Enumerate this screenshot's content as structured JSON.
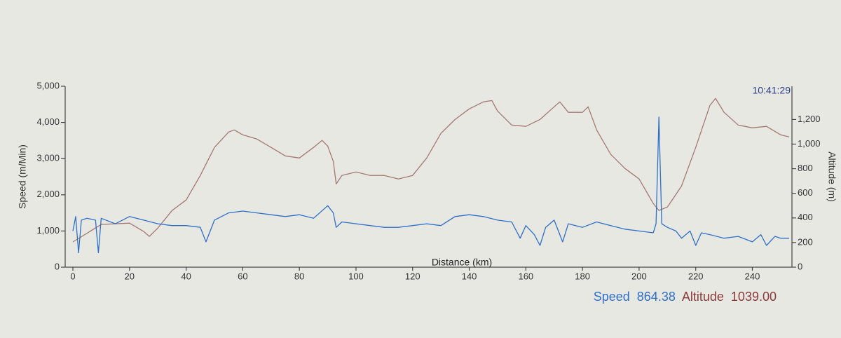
{
  "chart_data": {
    "type": "line",
    "xlabel": "Distance (km)",
    "ylabel": "Speed (m/Min)",
    "y2label": "Altitude (m)",
    "xlim": [
      0,
      253
    ],
    "xticks": [
      0,
      20,
      40,
      60,
      80,
      100,
      120,
      140,
      160,
      180,
      200,
      220,
      240
    ],
    "ylim": [
      0,
      5000
    ],
    "yticks": [
      0,
      {
        "value": 1000,
        "label": "1,000"
      },
      {
        "value": 2000,
        "label": "2,000"
      },
      {
        "value": 3000,
        "label": "3,000"
      },
      {
        "value": 4000,
        "label": "4,000"
      },
      {
        "value": 5000,
        "label": "5,000"
      }
    ],
    "y2lim": [
      0,
      1470
    ],
    "y2ticks": [
      0,
      200,
      400,
      600,
      800,
      {
        "value": 1000,
        "label": "1,000"
      },
      {
        "value": 1200,
        "label": "1,200"
      }
    ],
    "series": [
      {
        "name": "Speed",
        "color": "#2e6fc8",
        "x": [
          0,
          1,
          2,
          3,
          5,
          8,
          9,
          10,
          15,
          20,
          25,
          30,
          35,
          40,
          45,
          47,
          50,
          55,
          60,
          65,
          70,
          75,
          80,
          85,
          90,
          92,
          93,
          95,
          100,
          105,
          110,
          115,
          120,
          125,
          130,
          135,
          140,
          145,
          150,
          155,
          158,
          160,
          163,
          165,
          167,
          170,
          173,
          175,
          180,
          185,
          190,
          195,
          200,
          205,
          206,
          207,
          208,
          210,
          213,
          215,
          218,
          220,
          222,
          225,
          230,
          235,
          240,
          243,
          245,
          248,
          250,
          253
        ],
        "values": [
          1000,
          1400,
          400,
          1300,
          1350,
          1300,
          400,
          1350,
          1200,
          1400,
          1300,
          1200,
          1150,
          1150,
          1100,
          700,
          1300,
          1500,
          1550,
          1500,
          1450,
          1400,
          1450,
          1350,
          1700,
          1500,
          1100,
          1250,
          1200,
          1150,
          1100,
          1100,
          1150,
          1200,
          1150,
          1400,
          1450,
          1400,
          1300,
          1250,
          800,
          1150,
          900,
          600,
          1100,
          1300,
          700,
          1200,
          1100,
          1250,
          1150,
          1050,
          1000,
          950,
          1200,
          4150,
          1200,
          1100,
          1000,
          800,
          1000,
          600,
          950,
          900,
          800,
          850,
          700,
          900,
          600,
          850,
          800,
          800
        ]
      },
      {
        "name": "Altitude",
        "color": "#a57872",
        "axis": "y2",
        "x": [
          0,
          10,
          20,
          25,
          27,
          30,
          35,
          40,
          45,
          50,
          55,
          57,
          60,
          65,
          70,
          75,
          80,
          85,
          88,
          90,
          92,
          93,
          95,
          100,
          105,
          110,
          115,
          120,
          125,
          130,
          135,
          140,
          145,
          148,
          150,
          155,
          160,
          165,
          170,
          172,
          175,
          180,
          182,
          185,
          190,
          195,
          200,
          205,
          207,
          210,
          215,
          220,
          225,
          227,
          230,
          235,
          240,
          245,
          250,
          253
        ],
        "values": [
          205,
          347,
          358,
          290,
          250,
          318,
          460,
          546,
          745,
          973,
          1098,
          1115,
          1075,
          1041,
          973,
          904,
          887,
          973,
          1030,
          984,
          859,
          677,
          745,
          774,
          745,
          745,
          717,
          745,
          887,
          1087,
          1200,
          1286,
          1343,
          1354,
          1269,
          1155,
          1144,
          1200,
          1303,
          1343,
          1258,
          1258,
          1303,
          1115,
          916,
          802,
          717,
          518,
          461,
          489,
          660,
          973,
          1314,
          1371,
          1258,
          1155,
          1132,
          1144,
          1075,
          1058
        ]
      }
    ],
    "readout": {
      "time": "10:41:29",
      "values": [
        "864.38",
        "1039.00"
      ]
    }
  }
}
